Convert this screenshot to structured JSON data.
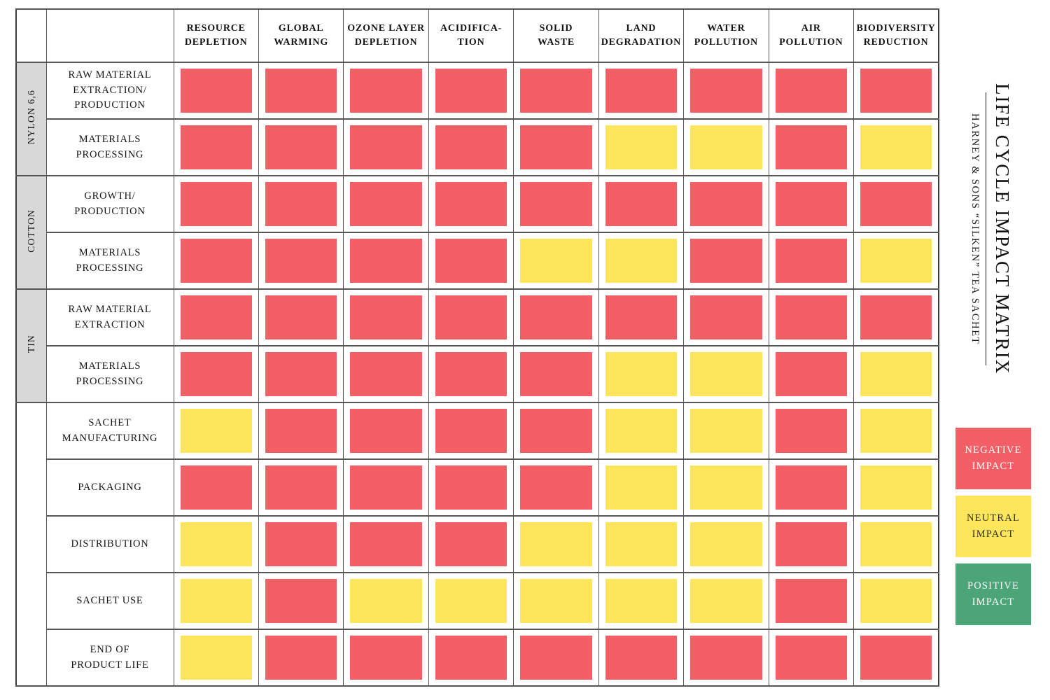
{
  "chart_data": {
    "type": "heatmap",
    "title": "LIFE CYCLE IMPACT MATRIX",
    "subtitle": "HARNEY & SONS “SILKEN” TEA SACHET",
    "grid": true,
    "legend_position": "right",
    "value_scale": [
      "negative",
      "neutral",
      "positive"
    ],
    "columns": [
      "RESOURCE\nDEPLETION",
      "GLOBAL\nWARMING",
      "OZONE LAYER\nDEPLETION",
      "ACIDIFICA-\nTION",
      "SOLID\nWASTE",
      "LAND\nDEGRADATION",
      "WATER\nPOLLUTION",
      "AIR\nPOLLUTION",
      "BIODIVERSITY\nREDUCTION"
    ],
    "groups": [
      {
        "label": "NYLON 6,6",
        "start": 0,
        "span": 2,
        "shaded": true
      },
      {
        "label": "COTTON",
        "start": 2,
        "span": 2,
        "shaded": true
      },
      {
        "label": "TIN",
        "start": 4,
        "span": 2,
        "shaded": true
      },
      {
        "label": "",
        "start": 6,
        "span": 5,
        "shaded": false
      }
    ],
    "rows": [
      {
        "group": "NYLON 6,6",
        "stage": "RAW MATERIAL\nEXTRACTION/\nPRODUCTION",
        "values": [
          "negative",
          "negative",
          "negative",
          "negative",
          "negative",
          "negative",
          "negative",
          "negative",
          "negative"
        ]
      },
      {
        "group": "NYLON 6,6",
        "stage": "MATERIALS\nPROCESSING",
        "values": [
          "negative",
          "negative",
          "negative",
          "negative",
          "negative",
          "neutral",
          "neutral",
          "negative",
          "neutral"
        ]
      },
      {
        "group": "COTTON",
        "stage": "GROWTH/\nPRODUCTION",
        "values": [
          "negative",
          "negative",
          "negative",
          "negative",
          "negative",
          "negative",
          "negative",
          "negative",
          "negative"
        ]
      },
      {
        "group": "COTTON",
        "stage": "MATERIALS\nPROCESSING",
        "values": [
          "negative",
          "negative",
          "negative",
          "negative",
          "neutral",
          "neutral",
          "negative",
          "negative",
          "neutral"
        ]
      },
      {
        "group": "TIN",
        "stage": "RAW MATERIAL\nEXTRACTION",
        "values": [
          "negative",
          "negative",
          "negative",
          "negative",
          "negative",
          "negative",
          "negative",
          "negative",
          "negative"
        ]
      },
      {
        "group": "TIN",
        "stage": "MATERIALS\nPROCESSING",
        "values": [
          "negative",
          "negative",
          "negative",
          "negative",
          "negative",
          "neutral",
          "neutral",
          "negative",
          "neutral"
        ]
      },
      {
        "group": "",
        "stage": "SACHET\nMANUFACTURING",
        "values": [
          "neutral",
          "negative",
          "negative",
          "negative",
          "negative",
          "neutral",
          "neutral",
          "negative",
          "neutral"
        ]
      },
      {
        "group": "",
        "stage": "PACKAGING",
        "values": [
          "negative",
          "negative",
          "negative",
          "negative",
          "negative",
          "neutral",
          "neutral",
          "negative",
          "neutral"
        ]
      },
      {
        "group": "",
        "stage": "DISTRIBUTION",
        "values": [
          "neutral",
          "negative",
          "negative",
          "negative",
          "neutral",
          "neutral",
          "neutral",
          "negative",
          "neutral"
        ]
      },
      {
        "group": "",
        "stage": "SACHET USE",
        "values": [
          "neutral",
          "negative",
          "neutral",
          "neutral",
          "neutral",
          "neutral",
          "neutral",
          "negative",
          "neutral"
        ]
      },
      {
        "group": "",
        "stage": "END OF\nPRODUCT LIFE",
        "values": [
          "neutral",
          "negative",
          "negative",
          "negative",
          "negative",
          "negative",
          "negative",
          "negative",
          "negative"
        ]
      }
    ],
    "legend": [
      {
        "label": "NEGATIVE\nIMPACT",
        "value": "negative",
        "color": "#F25F66",
        "text_color": "#FFFFFF"
      },
      {
        "label": "NEUTRAL\nIMPACT",
        "value": "neutral",
        "color": "#FDE55C",
        "text_color": "#2E2E2E"
      },
      {
        "label": "POSITIVE\nIMPACT",
        "value": "positive",
        "color": "#4CA579",
        "text_color": "#FFFFFF"
      }
    ]
  }
}
